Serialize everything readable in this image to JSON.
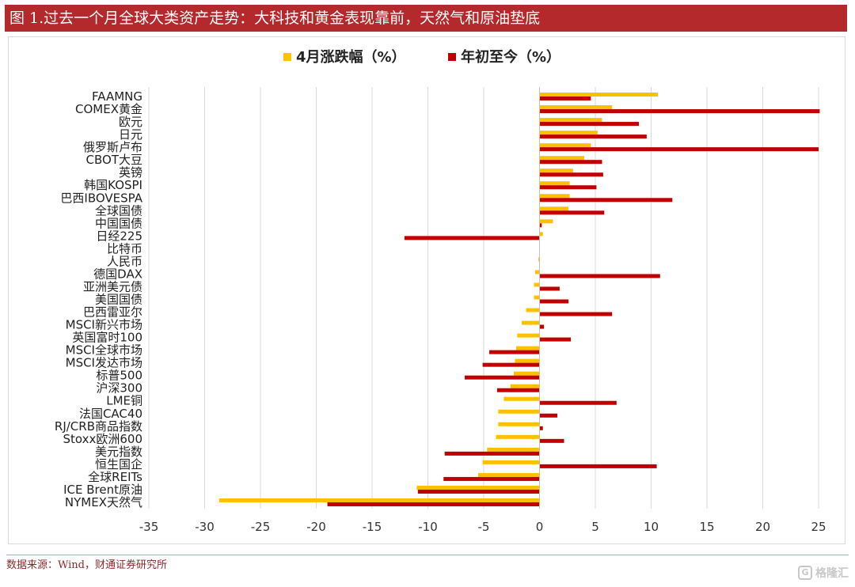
{
  "title": "图 1.过去一个月全球大类资产走势：大科技和黄金表现靠前，天然气和原油垫底",
  "source": "数据来源：Wind，财通证券研究所",
  "watermark": "格隆汇",
  "colors": {
    "series_1": "#ffc000",
    "series_2": "#c00000",
    "title_bg": "#b4292c"
  },
  "chart_data": {
    "type": "bar",
    "orientation": "horizontal",
    "categories": [
      "FAAMNG",
      "COMEX黄金",
      "欧元",
      "日元",
      "俄罗斯卢布",
      "CBOT大豆",
      "英镑",
      "韩国KOSPI",
      "巴西IBOVESPA",
      "全球国债",
      "中国国债",
      "日经225",
      "比特币",
      "人民币",
      "德国DAX",
      "亚洲美元债",
      "美国国债",
      "巴西雷亚尔",
      "MSCI新兴市场",
      "英国富时100",
      "MSCI全球市场",
      "MSCI发达市场",
      "标普500",
      "沪深300",
      "LME铜",
      "法国CAC40",
      "RJ/CRB商品指数",
      "Stoxx欧洲600",
      "美元指数",
      "恒生国企",
      "全球REITs",
      "ICE Brent原油",
      "NYMEX天然气"
    ],
    "series": [
      {
        "name": "4月涨跌幅（%）",
        "values": [
          10.6,
          6.5,
          5.6,
          5.2,
          4.6,
          4.0,
          3.0,
          2.7,
          2.7,
          2.6,
          1.2,
          0.3,
          0.0,
          -0.1,
          -0.4,
          -0.5,
          -0.5,
          -1.2,
          -1.6,
          -2.0,
          -2.1,
          -2.2,
          -2.3,
          -2.6,
          -3.2,
          -3.7,
          -3.7,
          -3.9,
          -4.7,
          -5.1,
          -5.5,
          -11.0,
          -28.7
        ]
      },
      {
        "name": "年初至今（%）",
        "values": [
          4.6,
          25.1,
          8.9,
          9.6,
          25.0,
          5.6,
          5.7,
          5.1,
          11.9,
          5.8,
          0.2,
          -12.1,
          0.0,
          0.0,
          10.8,
          1.8,
          2.6,
          6.5,
          0.4,
          2.8,
          -4.5,
          -5.1,
          -6.7,
          -3.8,
          6.9,
          1.6,
          0.3,
          2.2,
          -8.5,
          10.5,
          -8.6,
          -10.9,
          -19.0
        ]
      }
    ],
    "xlim": [
      -35,
      25
    ],
    "x_ticks": [
      -35,
      -30,
      -25,
      -20,
      -15,
      -10,
      -5,
      0,
      5,
      10,
      15,
      20,
      25
    ],
    "grid": "vertical",
    "legend_position": "top"
  }
}
